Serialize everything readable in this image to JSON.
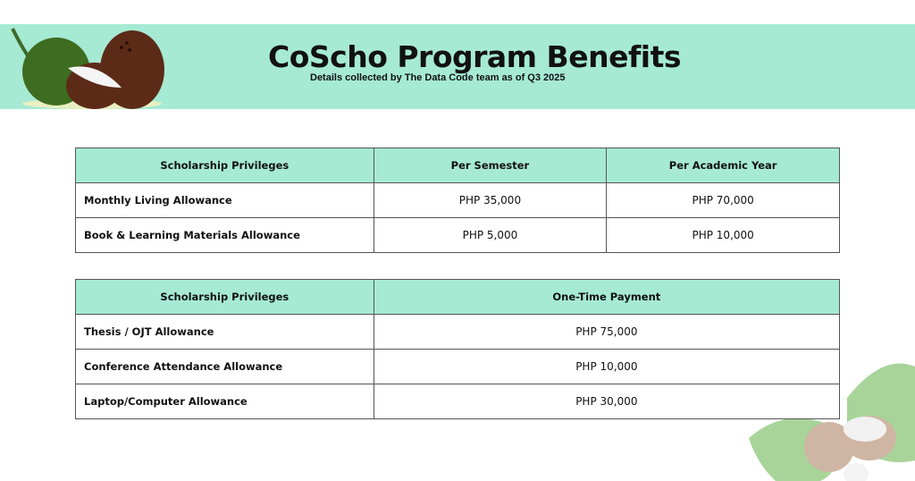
{
  "header": {
    "title": "CoScho Program Benefits",
    "subtitle": "Details collected by The Data Code team as of Q3 2025",
    "background": "#a6ead4"
  },
  "table1": {
    "columns": [
      "Scholarship Privileges",
      "Per Semester",
      "Per Academic Year"
    ],
    "rows": [
      {
        "name": "Monthly Living Allowance",
        "semester": "PHP 35,000",
        "year": "PHP 70,000"
      },
      {
        "name": "Book & Learning Materials Allowance",
        "semester": "PHP 5,000",
        "year": "PHP 10,000"
      }
    ]
  },
  "table2": {
    "columns": [
      "Scholarship Privileges",
      "One-Time Payment"
    ],
    "rows": [
      {
        "name": "Thesis / OJT Allowance",
        "amount": "PHP 75,000"
      },
      {
        "name": "Conference Attendance Allowance",
        "amount": "PHP 10,000"
      },
      {
        "name": "Laptop/Computer Allowance",
        "amount": "PHP 30,000"
      }
    ]
  },
  "icons": [
    "coconut-illustration",
    "monstera-leaf-coconut-illustration"
  ]
}
